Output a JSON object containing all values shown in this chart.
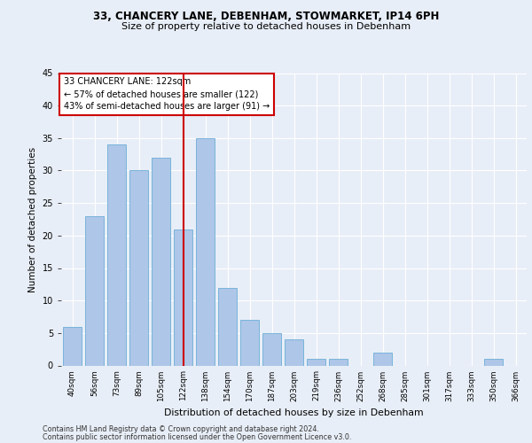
{
  "title1": "33, CHANCERY LANE, DEBENHAM, STOWMARKET, IP14 6PH",
  "title2": "Size of property relative to detached houses in Debenham",
  "xlabel": "Distribution of detached houses by size in Debenham",
  "ylabel": "Number of detached properties",
  "categories": [
    "40sqm",
    "56sqm",
    "73sqm",
    "89sqm",
    "105sqm",
    "122sqm",
    "138sqm",
    "154sqm",
    "170sqm",
    "187sqm",
    "203sqm",
    "219sqm",
    "236sqm",
    "252sqm",
    "268sqm",
    "285sqm",
    "301sqm",
    "317sqm",
    "333sqm",
    "350sqm",
    "366sqm"
  ],
  "values": [
    6,
    23,
    34,
    30,
    32,
    21,
    35,
    12,
    7,
    5,
    4,
    1,
    1,
    0,
    2,
    0,
    0,
    0,
    0,
    1,
    0
  ],
  "bar_color": "#aec6e8",
  "bar_edge_color": "#6baed6",
  "highlight_index": 5,
  "vline_color": "#cc0000",
  "annotation_text": "33 CHANCERY LANE: 122sqm\n← 57% of detached houses are smaller (122)\n43% of semi-detached houses are larger (91) →",
  "annotation_box_color": "#ffffff",
  "annotation_box_edge": "#cc0000",
  "ylim": [
    0,
    45
  ],
  "yticks": [
    0,
    5,
    10,
    15,
    20,
    25,
    30,
    35,
    40,
    45
  ],
  "footer1": "Contains HM Land Registry data © Crown copyright and database right 2024.",
  "footer2": "Contains public sector information licensed under the Open Government Licence v3.0.",
  "bg_color": "#e8eef7",
  "plot_bg_color": "#e8eef7"
}
